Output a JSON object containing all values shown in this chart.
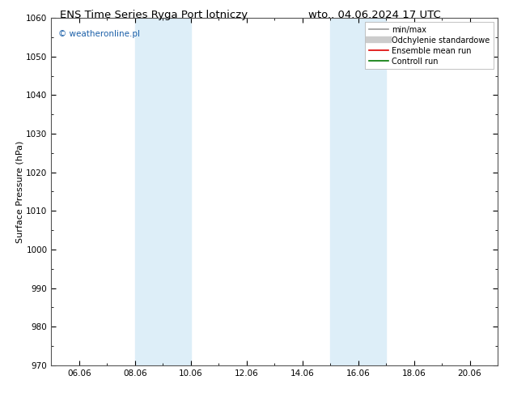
{
  "title_left": "ENS Time Series Ryga Port lotniczy",
  "title_right": "wto.. 04.06.2024 17 UTC",
  "ylabel": "Surface Pressure (hPa)",
  "ylim": [
    970,
    1060
  ],
  "yticks": [
    970,
    980,
    990,
    1000,
    1010,
    1020,
    1030,
    1040,
    1050,
    1060
  ],
  "xlim": [
    0,
    16
  ],
  "xtick_positions": [
    1,
    3,
    5,
    7,
    9,
    11,
    13,
    15
  ],
  "xtick_labels": [
    "06.06",
    "08.06",
    "10.06",
    "12.06",
    "14.06",
    "16.06",
    "18.06",
    "20.06"
  ],
  "shaded_bands": [
    {
      "x_start": 3,
      "x_end": 5,
      "color": "#ddeef8"
    },
    {
      "x_start": 10,
      "x_end": 12,
      "color": "#ddeef8"
    }
  ],
  "watermark": "© weatheronline.pl",
  "watermark_color": "#1a5fa8",
  "legend_entries": [
    {
      "label": "min/max",
      "color": "#999999",
      "lw": 1.2,
      "style": "solid"
    },
    {
      "label": "Odchylenie standardowe",
      "color": "#cccccc",
      "lw": 6,
      "style": "solid"
    },
    {
      "label": "Ensemble mean run",
      "color": "#dd0000",
      "lw": 1.2,
      "style": "solid"
    },
    {
      "label": "Controll run",
      "color": "#007700",
      "lw": 1.2,
      "style": "solid"
    }
  ],
  "background_color": "#ffffff",
  "spine_color": "#555555",
  "title_fontsize": 9.5,
  "ylabel_fontsize": 8,
  "tick_fontsize": 7.5,
  "watermark_fontsize": 7.5,
  "legend_fontsize": 7
}
